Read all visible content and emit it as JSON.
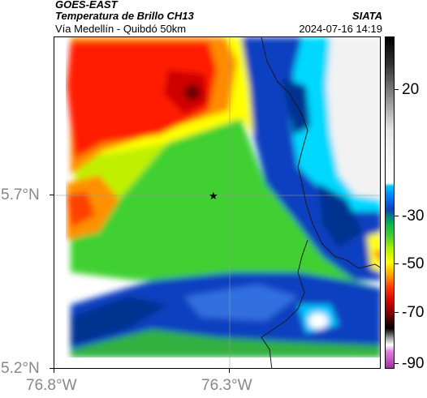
{
  "header": {
    "title_line1": "GOES-EAST",
    "title_line2": "Temperatura de Brillo CH13",
    "subtitle": "Vía Medellín - Quibdó 50km",
    "brand": "SIATA",
    "timestamp": "2024-07-16 14:19"
  },
  "axes": {
    "lat_labels": [
      "5.7°N",
      "5.2°N"
    ],
    "lon_labels": [
      "76.8°W",
      "76.3°W"
    ]
  },
  "colorbar": {
    "labels": [
      "20",
      "-30",
      "-50",
      "-70",
      "-90"
    ]
  },
  "map": {
    "gridlines": true,
    "marker": "star",
    "regions": [
      {
        "name": "red-core",
        "color": "#ff0000"
      },
      {
        "name": "orange-ring",
        "color": "#ff8c00"
      },
      {
        "name": "yellow-band",
        "color": "#ffff00"
      },
      {
        "name": "green-field",
        "color": "#40d030"
      },
      {
        "name": "blue-band",
        "color": "#1040c0"
      },
      {
        "name": "cyan-edge",
        "color": "#00d8ff"
      },
      {
        "name": "clear-sky",
        "color": "#f2f2f2"
      }
    ]
  }
}
